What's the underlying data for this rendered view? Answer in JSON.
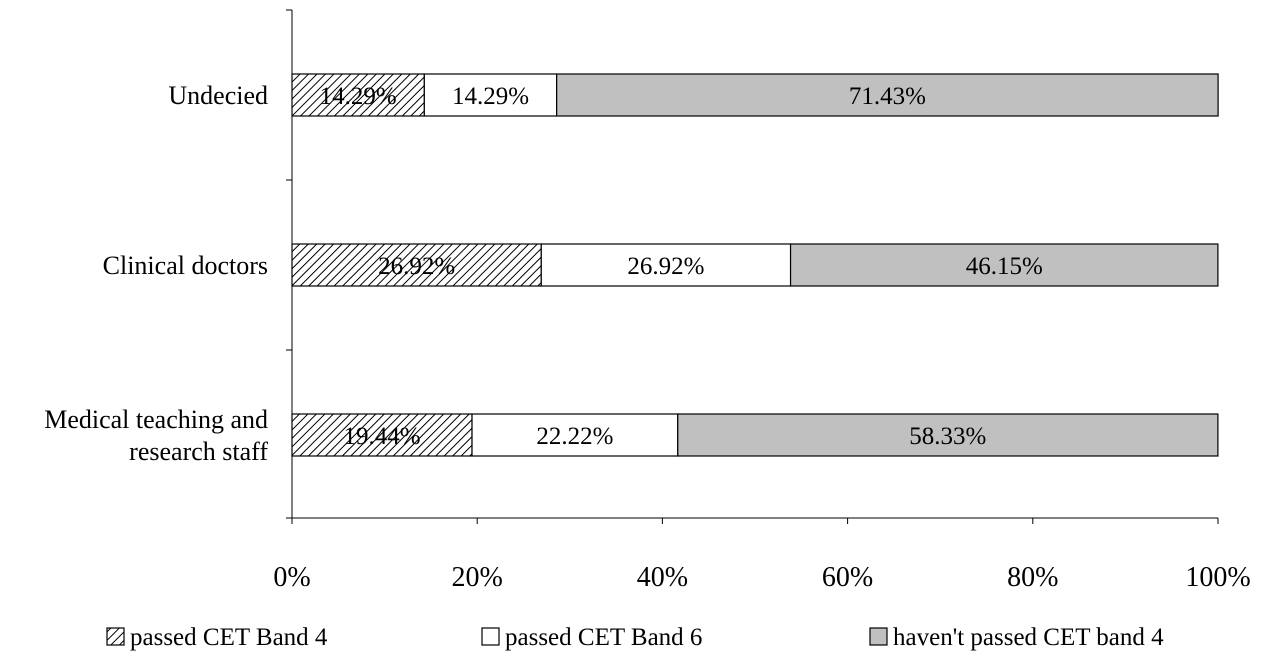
{
  "chart_data": {
    "type": "bar",
    "orientation": "horizontal",
    "stacked": "percent",
    "categories": [
      "Medical teaching and research staff",
      "Clinical doctors",
      "Undecied"
    ],
    "category_lines": [
      [
        "Medical teaching and",
        "research staff"
      ],
      [
        "Clinical doctors"
      ],
      [
        "Undecied"
      ]
    ],
    "series": [
      {
        "name": "passed CET Band 4",
        "values": [
          19.44,
          26.92,
          14.29
        ],
        "labels": [
          "19.44%",
          "26.92%",
          "14.29%"
        ],
        "fill": "hatch"
      },
      {
        "name": "passed CET Band 6",
        "values": [
          22.22,
          26.92,
          14.29
        ],
        "labels": [
          "22.22%",
          "26.92%",
          "14.29%"
        ],
        "fill": "#ffffff"
      },
      {
        "name": "haven't passed CET band 4",
        "values": [
          58.33,
          46.15,
          71.43
        ],
        "labels": [
          "58.33%",
          "46.15%",
          "71.43%"
        ],
        "fill": "#c0c0c0"
      }
    ],
    "xlim": [
      0,
      100
    ],
    "xticks": [
      0,
      20,
      40,
      60,
      80,
      100
    ],
    "xtick_labels": [
      "0%",
      "20%",
      "40%",
      "60%",
      "80%",
      "100%"
    ],
    "title": "",
    "xlabel": "",
    "ylabel": "",
    "grid": false,
    "legend": "bottom"
  }
}
